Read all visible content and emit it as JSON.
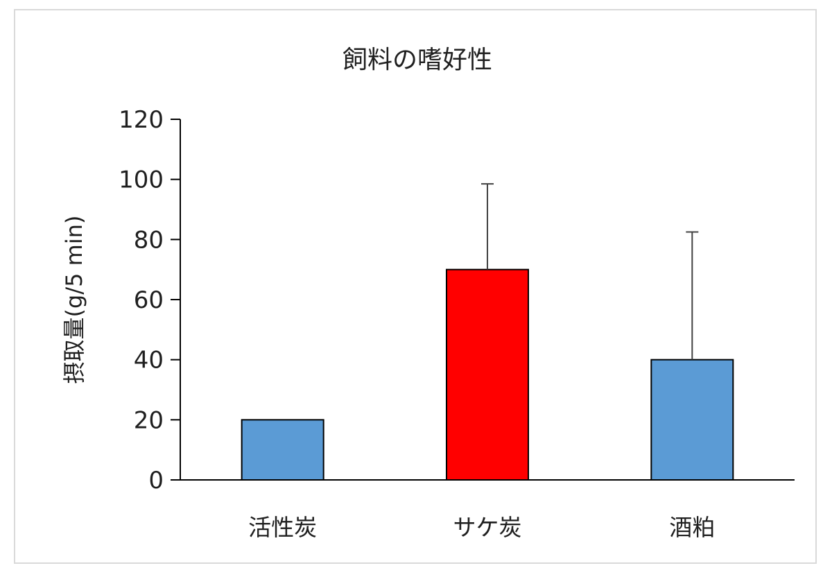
{
  "chart_data": {
    "type": "bar",
    "title": "飼料の嗜好性",
    "xlabel": "",
    "ylabel": "摂取量(g/5 min)",
    "ylim": [
      0,
      120
    ],
    "yticks": [
      0,
      20,
      40,
      60,
      80,
      100,
      120
    ],
    "categories": [
      "活性炭",
      "サケ炭",
      "酒粕"
    ],
    "values": [
      20,
      70,
      40
    ],
    "error_upper": [
      0,
      28.5,
      42.5
    ],
    "bar_colors": [
      "#5b9bd5",
      "#ff0000",
      "#5b9bd5"
    ],
    "grid": false,
    "legend": "none"
  }
}
